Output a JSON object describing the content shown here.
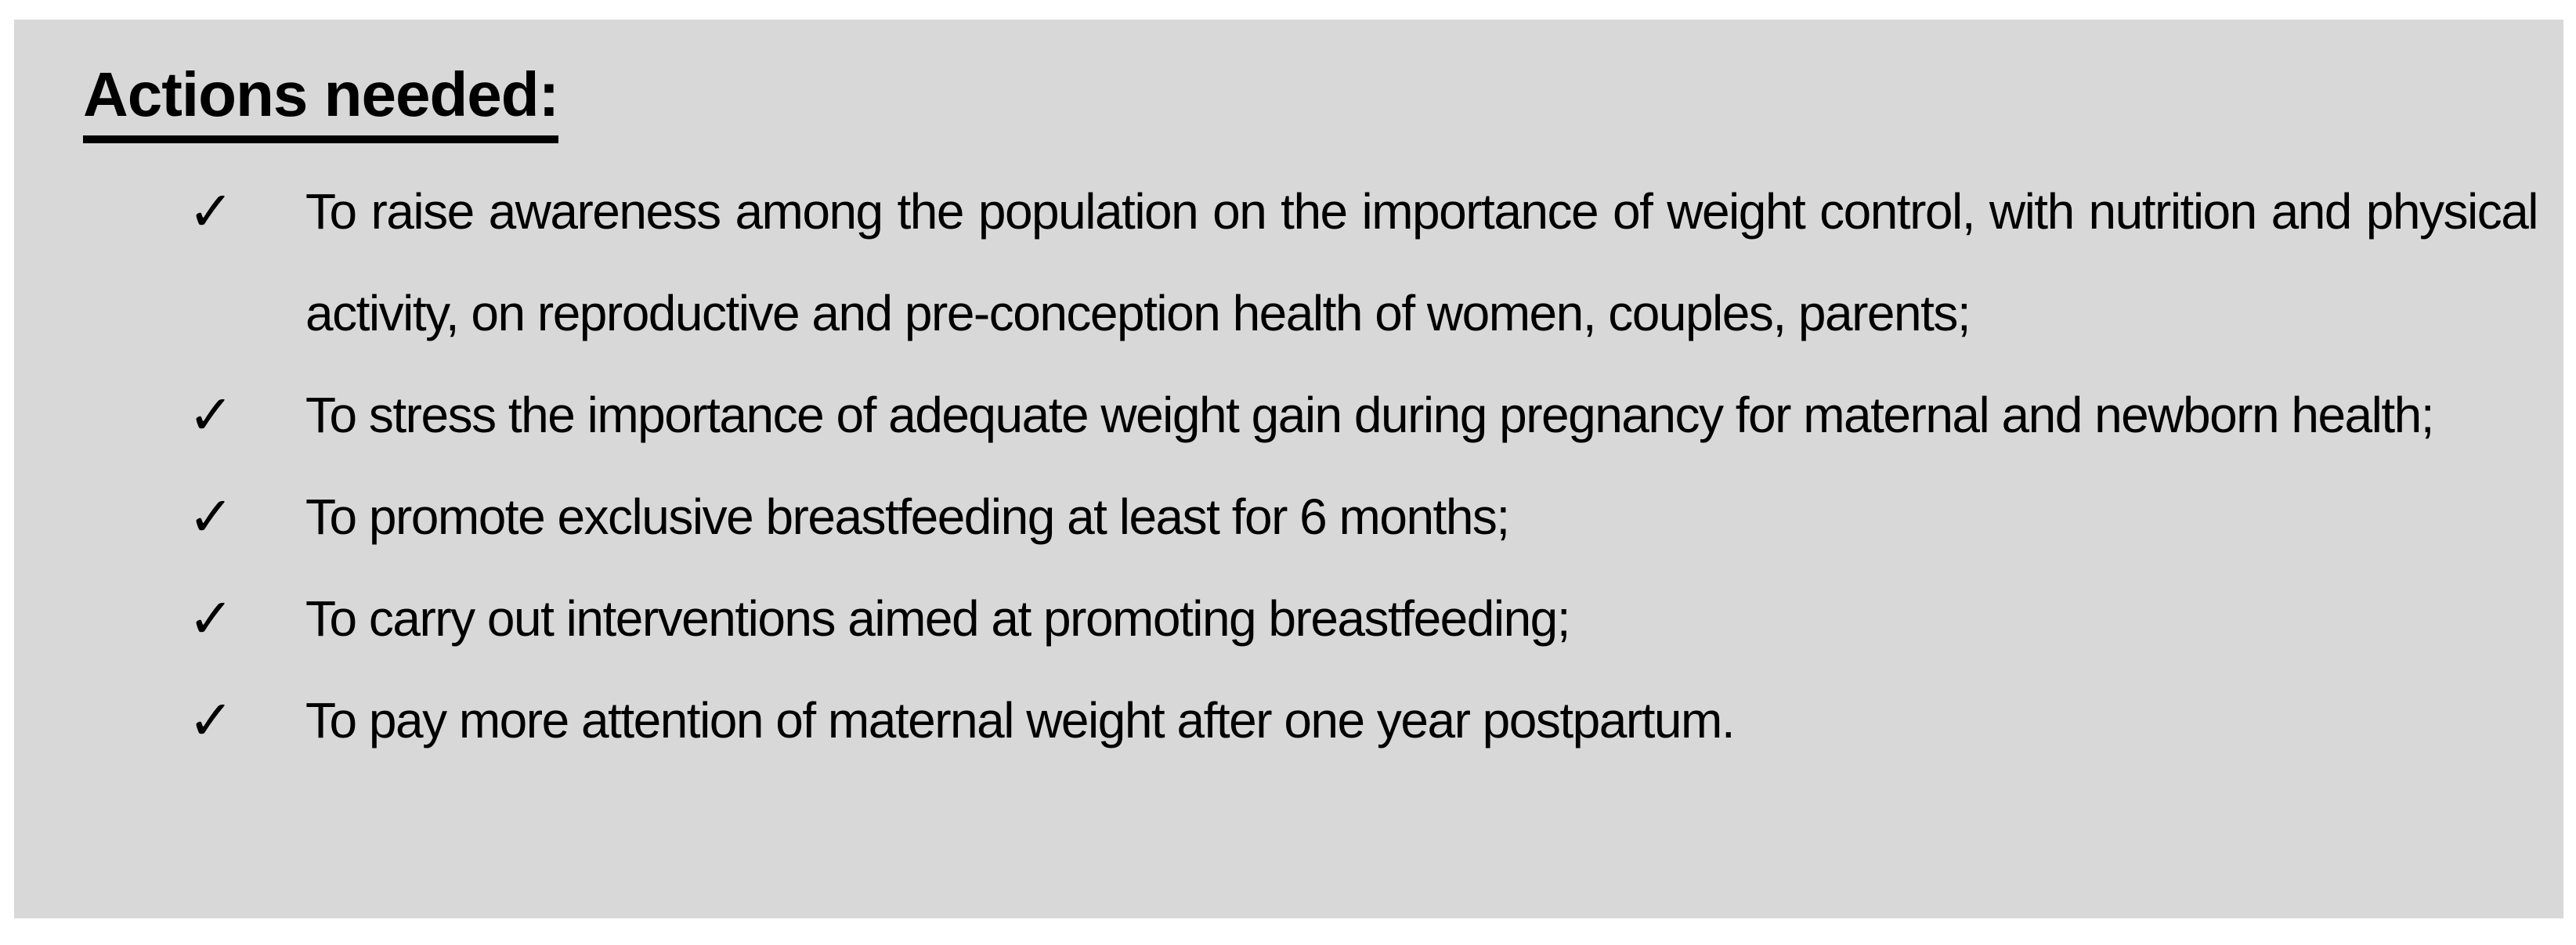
{
  "panel": {
    "heading": "Actions needed:",
    "bullet_char": "✓",
    "items": [
      {
        "text": "To raise awareness among the population on the importance of weight control, with nutrition and physical activity, on reproductive and pre-conception health of women, couples, parents;"
      },
      {
        "text": "To stress the importance of adequate weight gain during pregnancy for maternal and newborn health;"
      },
      {
        "text": "To promote exclusive breastfeeding at least for 6 months;"
      },
      {
        "text": "To carry out interventions aimed at promoting breastfeeding;"
      },
      {
        "text": "To pay more attention of maternal weight after one year postpartum."
      }
    ],
    "colors": {
      "panel_background": "#d8d8d8",
      "page_background": "#ffffff",
      "text": "#000000"
    }
  }
}
